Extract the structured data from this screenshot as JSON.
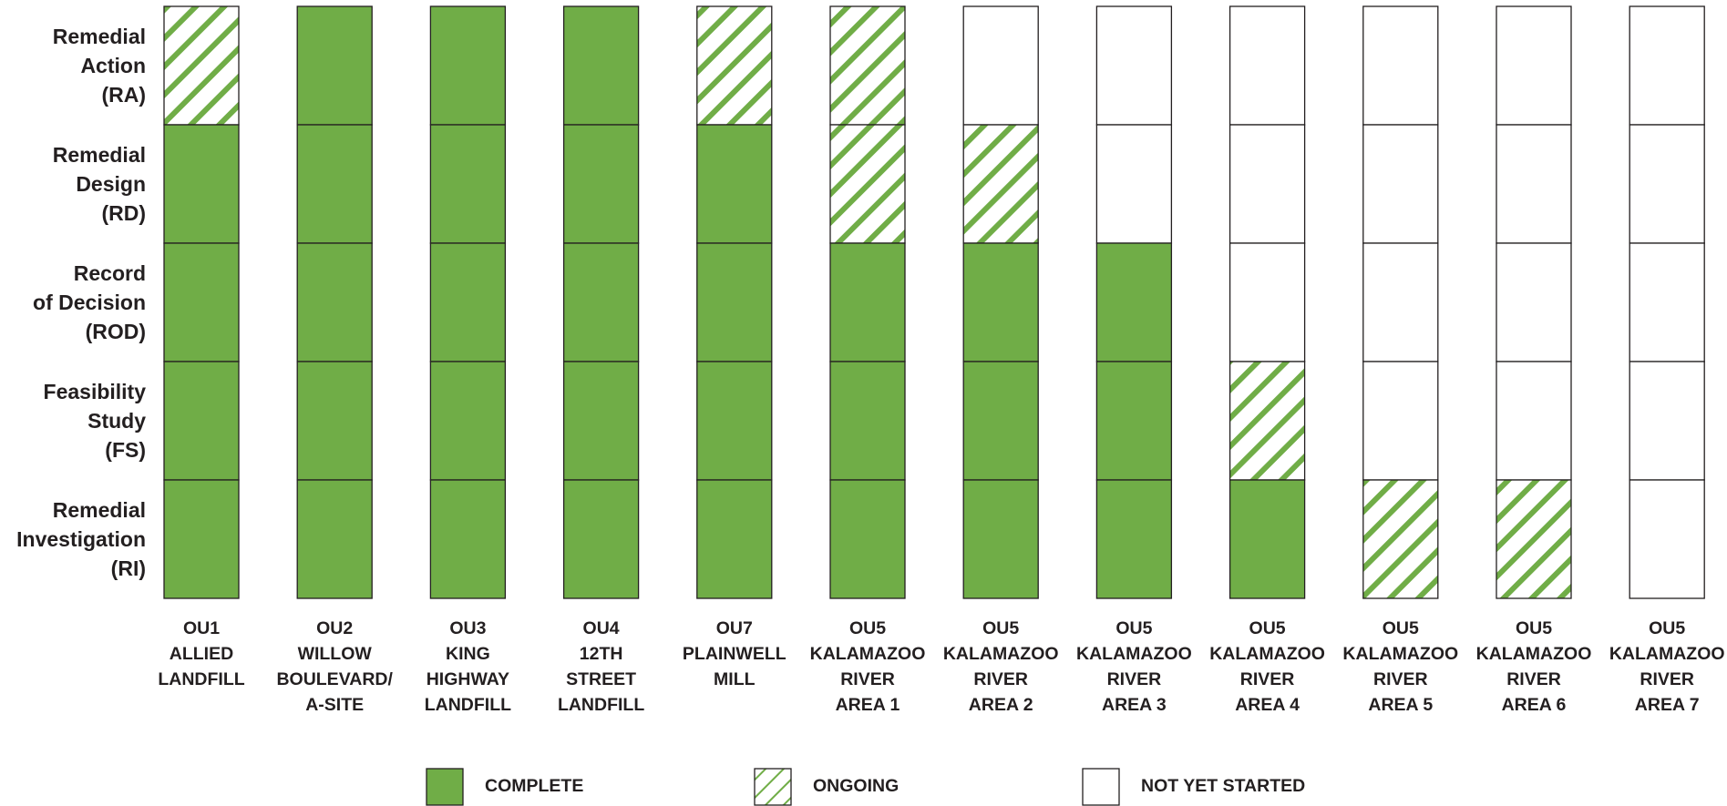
{
  "chart_data": {
    "type": "table",
    "phases": [
      {
        "key": "RA",
        "label_lines": [
          "Remedial",
          "Action",
          "(RA)"
        ]
      },
      {
        "key": "RD",
        "label_lines": [
          "Remedial",
          "Design",
          "(RD)"
        ]
      },
      {
        "key": "ROD",
        "label_lines": [
          "Record",
          "of Decision",
          "(ROD)"
        ]
      },
      {
        "key": "FS",
        "label_lines": [
          "Feasibility",
          "Study",
          "(FS)"
        ]
      },
      {
        "key": "RI",
        "label_lines": [
          "Remedial",
          "Investigation",
          "(RI)"
        ]
      }
    ],
    "units": [
      {
        "label_lines": [
          "OU1",
          "ALLIED",
          "LANDFILL"
        ],
        "status": {
          "RI": "complete",
          "FS": "complete",
          "ROD": "complete",
          "RD": "complete",
          "RA": "ongoing"
        }
      },
      {
        "label_lines": [
          "OU2",
          "WILLOW",
          "BOULEVARD/",
          "A-SITE"
        ],
        "status": {
          "RI": "complete",
          "FS": "complete",
          "ROD": "complete",
          "RD": "complete",
          "RA": "complete"
        }
      },
      {
        "label_lines": [
          "OU3",
          "KING",
          "HIGHWAY",
          "LANDFILL"
        ],
        "status": {
          "RI": "complete",
          "FS": "complete",
          "ROD": "complete",
          "RD": "complete",
          "RA": "complete"
        }
      },
      {
        "label_lines": [
          "OU4",
          "12TH",
          "STREET",
          "LANDFILL"
        ],
        "status": {
          "RI": "complete",
          "FS": "complete",
          "ROD": "complete",
          "RD": "complete",
          "RA": "complete"
        }
      },
      {
        "label_lines": [
          "OU7",
          "PLAINWELL",
          "MILL"
        ],
        "status": {
          "RI": "complete",
          "FS": "complete",
          "ROD": "complete",
          "RD": "complete",
          "RA": "ongoing"
        }
      },
      {
        "label_lines": [
          "OU5",
          "KALAMAZOO",
          "RIVER",
          "AREA 1"
        ],
        "status": {
          "RI": "complete",
          "FS": "complete",
          "ROD": "complete",
          "RD": "ongoing",
          "RA": "ongoing"
        }
      },
      {
        "label_lines": [
          "OU5",
          "KALAMAZOO",
          "RIVER",
          "AREA 2"
        ],
        "status": {
          "RI": "complete",
          "FS": "complete",
          "ROD": "complete",
          "RD": "ongoing",
          "RA": "not_started"
        }
      },
      {
        "label_lines": [
          "OU5",
          "KALAMAZOO",
          "RIVER",
          "AREA 3"
        ],
        "status": {
          "RI": "complete",
          "FS": "complete",
          "ROD": "complete",
          "RD": "not_started",
          "RA": "not_started"
        }
      },
      {
        "label_lines": [
          "OU5",
          "KALAMAZOO",
          "RIVER",
          "AREA 4"
        ],
        "status": {
          "RI": "complete",
          "FS": "ongoing",
          "ROD": "not_started",
          "RD": "not_started",
          "RA": "not_started"
        }
      },
      {
        "label_lines": [
          "OU5",
          "KALAMAZOO",
          "RIVER",
          "AREA 5"
        ],
        "status": {
          "RI": "ongoing",
          "FS": "not_started",
          "ROD": "not_started",
          "RD": "not_started",
          "RA": "not_started"
        }
      },
      {
        "label_lines": [
          "OU5",
          "KALAMAZOO",
          "RIVER",
          "AREA 6"
        ],
        "status": {
          "RI": "ongoing",
          "FS": "not_started",
          "ROD": "not_started",
          "RD": "not_started",
          "RA": "not_started"
        }
      },
      {
        "label_lines": [
          "OU5",
          "KALAMAZOO",
          "RIVER",
          "AREA 7"
        ],
        "status": {
          "RI": "not_started",
          "FS": "not_started",
          "ROD": "not_started",
          "RD": "not_started",
          "RA": "not_started"
        }
      }
    ],
    "legend": [
      {
        "status": "complete",
        "label": "COMPLETE"
      },
      {
        "status": "ongoing",
        "label": "ONGOING"
      },
      {
        "status": "not_started",
        "label": "NOT YET STARTED"
      }
    ],
    "colors": {
      "complete": "#70ad47",
      "hatch": "#70ad47",
      "border": "#231f20",
      "empty": "#ffffff"
    }
  }
}
